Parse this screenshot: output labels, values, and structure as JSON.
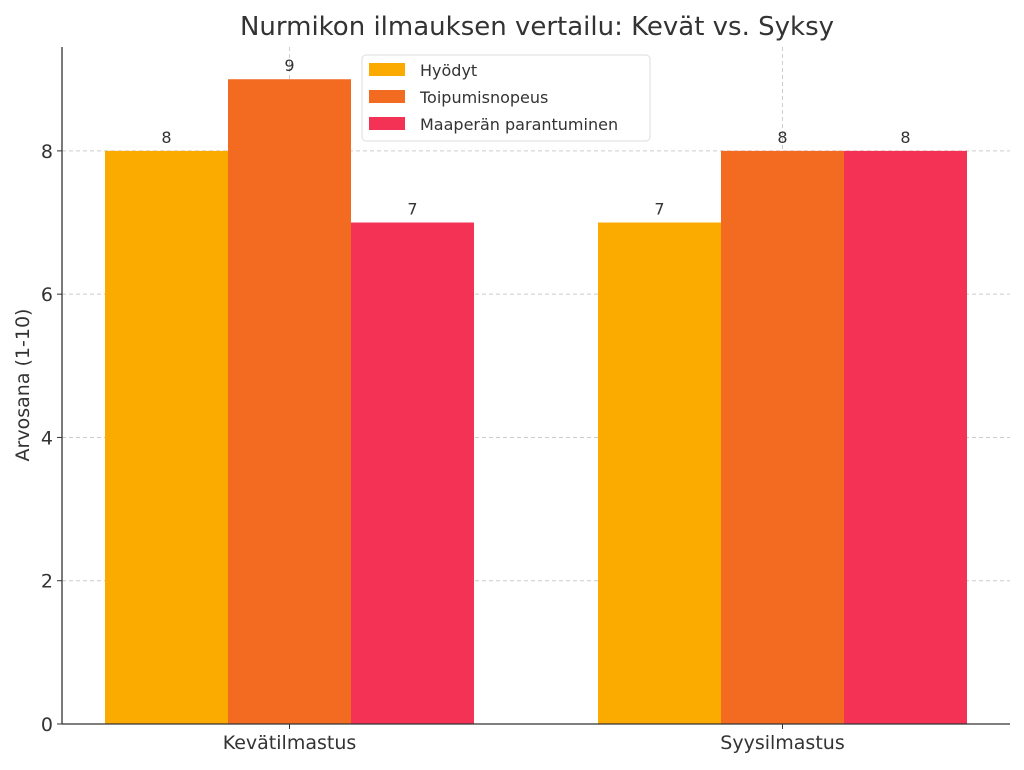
{
  "chart_data": {
    "type": "bar",
    "title": "Nurmikon ilmauksen vertailu: Kevät vs. Syksy",
    "xlabel": "",
    "ylabel": "Arvosana (1-10)",
    "categories": [
      "Kevätilmastus",
      "Syysilmastus"
    ],
    "series": [
      {
        "name": "Hyödyt",
        "values": [
          8,
          7
        ],
        "color": "#FBAA00"
      },
      {
        "name": "Toipumisnopeus",
        "values": [
          9,
          8
        ],
        "color": "#F26B21"
      },
      {
        "name": "Maaperän parantuminen",
        "values": [
          7,
          8
        ],
        "color": "#F43256"
      }
    ],
    "ylim": [
      0,
      9.45
    ],
    "yticks": [
      0,
      2,
      4,
      6,
      8
    ],
    "grid": true,
    "legend": "top-right"
  }
}
